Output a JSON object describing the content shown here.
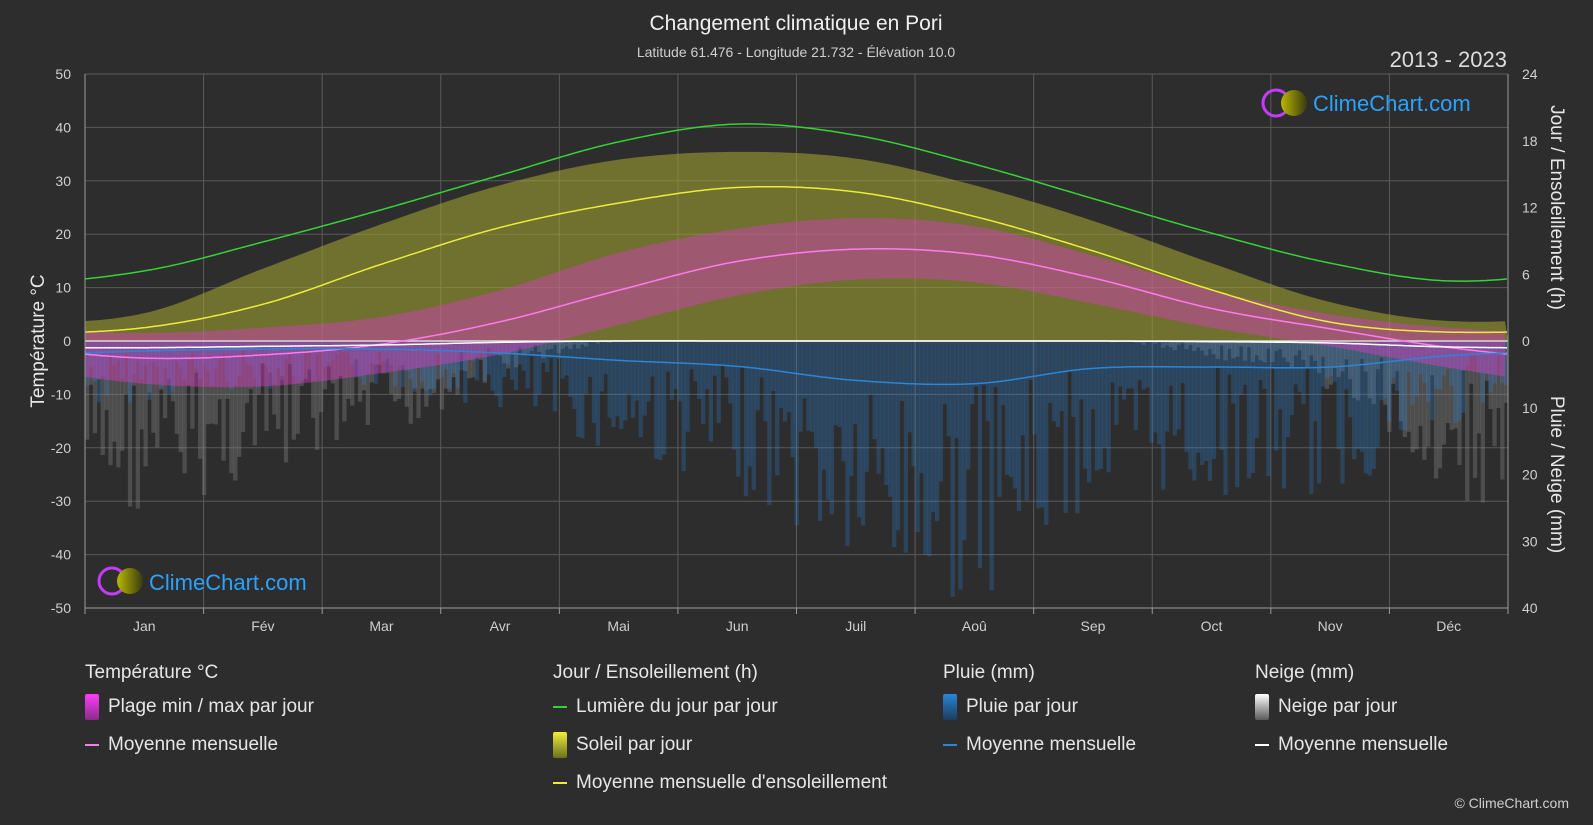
{
  "title": "Changement climatique en Pori",
  "subtitle": "Latitude 61.476 - Longitude 21.732 - Élévation 10.0",
  "year_range": "2013 - 2023",
  "watermark": "ClimeChart.com",
  "copyright": "© ClimeChart.com",
  "colors": {
    "background": "#2d2d2d",
    "daylight": "#35d335",
    "sunshine_line": "#ecec3a",
    "sunshine_band": "#a8a832",
    "temp_band": "#d63fc4",
    "temp_line": "#ff7af0",
    "rain": "#2a86d6",
    "snow_line": "#ffffff",
    "grid": "#5a5a5a",
    "brand": "#2aa3ff"
  },
  "chart_data": {
    "type": "line",
    "categories": [
      "Jan",
      "Fév",
      "Mar",
      "Avr",
      "Mai",
      "Jun",
      "Juil",
      "Aoû",
      "Sep",
      "Oct",
      "Nov",
      "Déc"
    ],
    "y_left": {
      "label": "Température °C",
      "min": -50,
      "max": 50,
      "ticks": [
        50,
        40,
        30,
        20,
        10,
        0,
        -10,
        -20,
        -30,
        -40,
        -50
      ]
    },
    "y_right_top": {
      "label": "Jour / Ensoleillement (h)",
      "min": 0,
      "max": 24,
      "ticks": [
        24,
        18,
        12,
        6,
        0
      ]
    },
    "y_right_bottom": {
      "label": "Pluie / Neige (mm)",
      "min": 0,
      "max": 40,
      "ticks": [
        0,
        10,
        20,
        30,
        40
      ]
    },
    "series": [
      {
        "name": "Lumière du jour par jour",
        "axis": "hours",
        "values": [
          6.3,
          8.9,
          11.8,
          14.9,
          17.9,
          19.5,
          18.5,
          15.9,
          12.8,
          9.7,
          7.0,
          5.4
        ]
      },
      {
        "name": "Moyenne mensuelle d'ensoleillement",
        "axis": "hours",
        "values": [
          1.2,
          3.3,
          6.9,
          10.2,
          12.4,
          13.8,
          13.4,
          11.2,
          8.1,
          4.6,
          1.7,
          0.8
        ]
      },
      {
        "name": "Soleil par jour (max)",
        "axis": "hours",
        "values": [
          2.5,
          6.5,
          10.5,
          14.0,
          16.3,
          17.0,
          16.4,
          14.0,
          10.8,
          7.0,
          3.5,
          1.8
        ]
      },
      {
        "name": "Température moyenne mensuelle",
        "axis": "temp",
        "values": [
          -3.2,
          -2.6,
          -0.6,
          3.6,
          9.5,
          14.9,
          17.2,
          16.2,
          11.8,
          6.1,
          2.3,
          -1.2
        ]
      },
      {
        "name": "Température max journalière",
        "axis": "temp",
        "values": [
          1.5,
          2.5,
          4.5,
          9.5,
          16.5,
          21.0,
          23.0,
          21.5,
          16.0,
          9.5,
          5.0,
          2.5
        ]
      },
      {
        "name": "Température min journalière",
        "axis": "temp",
        "values": [
          -8.0,
          -8.5,
          -6.0,
          -2.5,
          3.0,
          8.5,
          11.5,
          11.0,
          7.0,
          2.5,
          -1.0,
          -5.0
        ]
      },
      {
        "name": "Pluie moyenne mensuelle",
        "axis": "precip",
        "values": [
          1.5,
          1.2,
          1.2,
          1.8,
          2.9,
          3.8,
          5.9,
          6.4,
          4.1,
          3.9,
          3.9,
          2.2
        ]
      },
      {
        "name": "Neige moyenne mensuelle",
        "axis": "precip",
        "values": [
          1.0,
          0.8,
          0.6,
          0.2,
          0.0,
          0.0,
          0.0,
          0.0,
          0.0,
          0.1,
          0.3,
          0.9
        ]
      }
    ]
  },
  "legend": {
    "temperature": {
      "title": "Température °C",
      "range": "Plage min / max par jour",
      "mean": "Moyenne mensuelle"
    },
    "sun": {
      "title": "Jour / Ensoleillement (h)",
      "daylight": "Lumière du jour par jour",
      "sunshine": "Soleil par jour",
      "mean": "Moyenne mensuelle d'ensoleillement"
    },
    "rain": {
      "title": "Pluie (mm)",
      "daily": "Pluie par jour",
      "mean": "Moyenne mensuelle"
    },
    "snow": {
      "title": "Neige (mm)",
      "daily": "Neige par jour",
      "mean": "Moyenne mensuelle"
    }
  }
}
